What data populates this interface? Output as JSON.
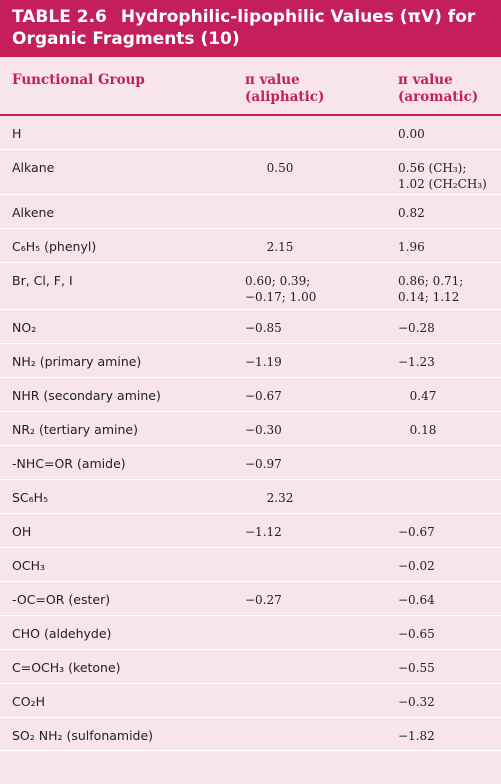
{
  "title": {
    "number": "TABLE 2.6",
    "line1": "Hydrophilic-lipophilic Values (πV) for",
    "line2": "Organic Fragments (10)"
  },
  "headers": {
    "col1": "Functional Group",
    "col2_line1": "π value",
    "col2_line2": "(aliphatic)",
    "col3_line1": "π value",
    "col3_line2": "(aromatic)"
  },
  "rows": [
    {
      "group": "H",
      "aliphatic": "",
      "aromatic": "0.00"
    },
    {
      "group": "Alkane",
      "aliphatic": "0.50",
      "aromatic": "0.56 (CH₃);\n1.02 (CH₂CH₃)"
    },
    {
      "group": "Alkene",
      "aliphatic": "",
      "aromatic": "0.82"
    },
    {
      "group": "C₆H₅ (phenyl)",
      "aliphatic": "2.15",
      "aromatic": "1.96"
    },
    {
      "group": "Br, Cl, F, I",
      "aliphatic": "0.60; 0.39;\n−0.17; 1.00",
      "aromatic": "0.86; 0.71;\n0.14; 1.12"
    },
    {
      "group": "NO₂",
      "aliphatic": "−0.85",
      "aromatic": "−0.28"
    },
    {
      "group": "NH₂ (primary amine)",
      "aliphatic": "−1.19",
      "aromatic": "−1.23"
    },
    {
      "group": "NHR (secondary amine)",
      "aliphatic": "−0.67",
      "aromatic": "0.47"
    },
    {
      "group": "NR₂ (tertiary amine)",
      "aliphatic": "−0.30",
      "aromatic": "0.18"
    },
    {
      "group": "-NHC=OR (amide)",
      "aliphatic": "−0.97",
      "aromatic": ""
    },
    {
      "group": "SC₆H₅",
      "aliphatic": "2.32",
      "aromatic": ""
    },
    {
      "group": "OH",
      "aliphatic": "−1.12",
      "aromatic": "−0.67"
    },
    {
      "group": "OCH₃",
      "aliphatic": "",
      "aromatic": "−0.02"
    },
    {
      "group": "-OC=OR (ester)",
      "aliphatic": "−0.27",
      "aromatic": "−0.64"
    },
    {
      "group": "CHO (aldehyde)",
      "aliphatic": "",
      "aromatic": "−0.65"
    },
    {
      "group": "C=OCH₃ (ketone)",
      "aliphatic": "",
      "aromatic": "−0.55"
    },
    {
      "group": "CO₂H",
      "aliphatic": "",
      "aromatic": "−0.32"
    },
    {
      "group": "SO₂ NH₂ (sulfonamide)",
      "aliphatic": "",
      "aromatic": "−1.82"
    }
  ],
  "colors": {
    "accent": "#c41f5b",
    "background": "#f7e5e9"
  }
}
